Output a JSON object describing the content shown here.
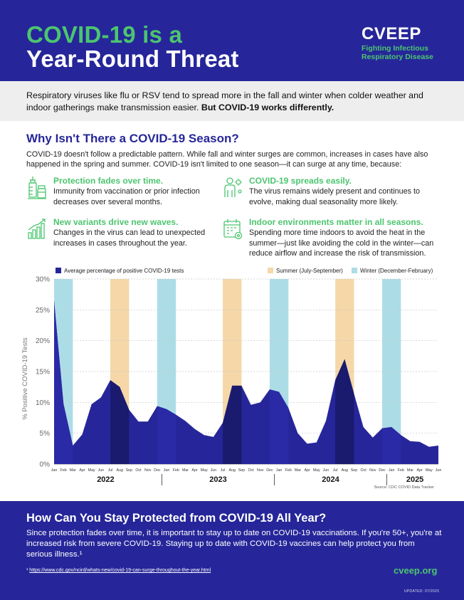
{
  "header": {
    "title_line1": "COVID-19 is a",
    "title_line2": "Year-Round Threat",
    "brand": "CVEEP",
    "tagline": "Fighting Infectious Respiratory Disease"
  },
  "intro": {
    "text": "Respiratory viruses like flu or RSV tend to spread more in the fall and winter when colder weather and indoor gatherings make transmission easier.",
    "bold": "But COVID-19 works differently."
  },
  "why": {
    "heading": "Why Isn't There a COVID-19 Season?",
    "body": "COVID-19 doesn't follow a predictable pattern. While fall and winter surges are common, increases in cases have also happened in the spring and summer. COVID-19 isn't limited to one season—it can surge at any time, because:"
  },
  "reasons": [
    {
      "title": "Protection fades over time.",
      "text": "Immunity from vaccination or prior infection decreases over several months.",
      "icon": "vaccine-vial-icon"
    },
    {
      "title": "COVID-19 spreads easily.",
      "text": "The virus remains widely present and continues to evolve, making dual seasonality more likely.",
      "icon": "person-virus-icon"
    },
    {
      "title": "New variants drive new waves.",
      "text": "Changes in the virus can lead to unexpected increases in cases throughout the year.",
      "icon": "bar-growth-icon"
    },
    {
      "title": "Indoor environments matter in all seasons.",
      "text": "Spending more time indoors to avoid the heat in the summer—just like avoiding the cold in the winter—can reduce airflow and increase the risk of transmission.",
      "icon": "calendar-gear-icon"
    }
  ],
  "chart_data": {
    "type": "area",
    "ylabel": "% Positive COVID-19 Tests",
    "ylim": [
      0,
      30
    ],
    "yticks": [
      "0%",
      "5%",
      "10%",
      "15%",
      "20%",
      "25%",
      "30%"
    ],
    "months": [
      "Jan",
      "Feb",
      "Mar",
      "Apr",
      "May",
      "Jun",
      "Jul",
      "Aug",
      "Sep",
      "Oct",
      "Nov",
      "Dec",
      "Jan",
      "Feb",
      "Mar",
      "Apr",
      "May",
      "Jun",
      "Jul",
      "Aug",
      "Sep",
      "Oct",
      "Nov",
      "Dec",
      "Jan",
      "Feb",
      "Mar",
      "Apr",
      "May",
      "Jun",
      "Jul",
      "Aug",
      "Sep",
      "Oct",
      "Nov",
      "Dec",
      "Jan",
      "Feb",
      "Mar",
      "Apr",
      "May",
      "Jun"
    ],
    "years": [
      "2022",
      "2023",
      "2024",
      "2025"
    ],
    "series": [
      {
        "name": "Average percentage of positive COVID-19 tests",
        "color": "#26269a",
        "values": [
          26.5,
          9.8,
          3.0,
          4.8,
          9.7,
          10.8,
          13.6,
          12.5,
          8.8,
          6.9,
          6.9,
          9.4,
          8.9,
          8.0,
          7.0,
          5.7,
          4.7,
          4.4,
          6.7,
          12.7,
          12.7,
          9.6,
          10.0,
          12.1,
          11.7,
          9.1,
          5.0,
          3.3,
          3.5,
          7.0,
          13.6,
          17.0,
          11.4,
          6.0,
          4.3,
          5.8,
          6.0,
          4.7,
          3.7,
          3.6,
          2.8,
          3.0
        ]
      }
    ],
    "legend": [
      {
        "label": "Average percentage of positive COVID-19 tests",
        "color": "#26269a"
      },
      {
        "label": "Summer (July-September)",
        "color": "#f6d7a7"
      },
      {
        "label": "Winter (December-February)",
        "color": "#acdde7"
      }
    ],
    "summer_months": [
      [
        6,
        8
      ],
      [
        18,
        20
      ],
      [
        30,
        32
      ]
    ],
    "winter_months": [
      [
        0,
        2
      ],
      [
        11,
        13
      ],
      [
        23,
        25
      ],
      [
        35,
        37
      ]
    ],
    "source": "Source: CDC COVID Data Tracker"
  },
  "footer": {
    "heading": "How Can You Stay Protected from COVID-19 All Year?",
    "body": "Since protection fades over time, it is important to stay up to date on COVID-19 vaccinations. If you're 50+, you're at increased risk from severe COVID-19. Staying up to date with COVID-19 vaccines can help protect you from serious illness.¹",
    "footnote_marker": "¹",
    "footnote_url": "https://www.cdc.gov/ncird/whats-new/covid-19-can-surge-throughout-the-year.html",
    "site": "cveep.org",
    "updated": "UPDATED: 07/2025"
  }
}
